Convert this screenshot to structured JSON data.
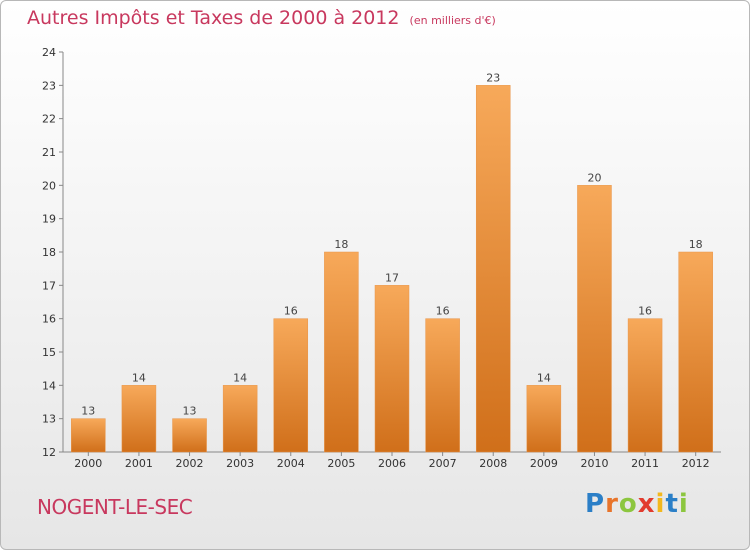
{
  "title": "Autres Impôts et Taxes de 2000 à 2012",
  "subtitle": "(en milliers d'€)",
  "commune": "NOGENT-LE-SEC",
  "logo": {
    "letters": [
      "P",
      "r",
      "o",
      "x",
      "i",
      "t",
      "i"
    ],
    "colors": [
      "#2b7fc7",
      "#e8742a",
      "#8cc63f",
      "#e23b2e",
      "#f3b81d",
      "#2b7fc7",
      "#8cc63f"
    ]
  },
  "colors": {
    "bar_light": "#f7a95a",
    "bar_dark": "#d06f1a",
    "accent": "#c8385e"
  },
  "chart_data": {
    "type": "bar",
    "categories": [
      "2000",
      "2001",
      "2002",
      "2003",
      "2004",
      "2005",
      "2006",
      "2007",
      "2008",
      "2009",
      "2010",
      "2011",
      "2012"
    ],
    "values": [
      13,
      14,
      13,
      14,
      16,
      18,
      17,
      16,
      23,
      14,
      20,
      16,
      18
    ],
    "ylim": [
      12,
      24
    ],
    "yticks": [
      12,
      13,
      14,
      15,
      16,
      17,
      18,
      19,
      20,
      21,
      22,
      23,
      24
    ],
    "grid": false,
    "legend": "none"
  }
}
